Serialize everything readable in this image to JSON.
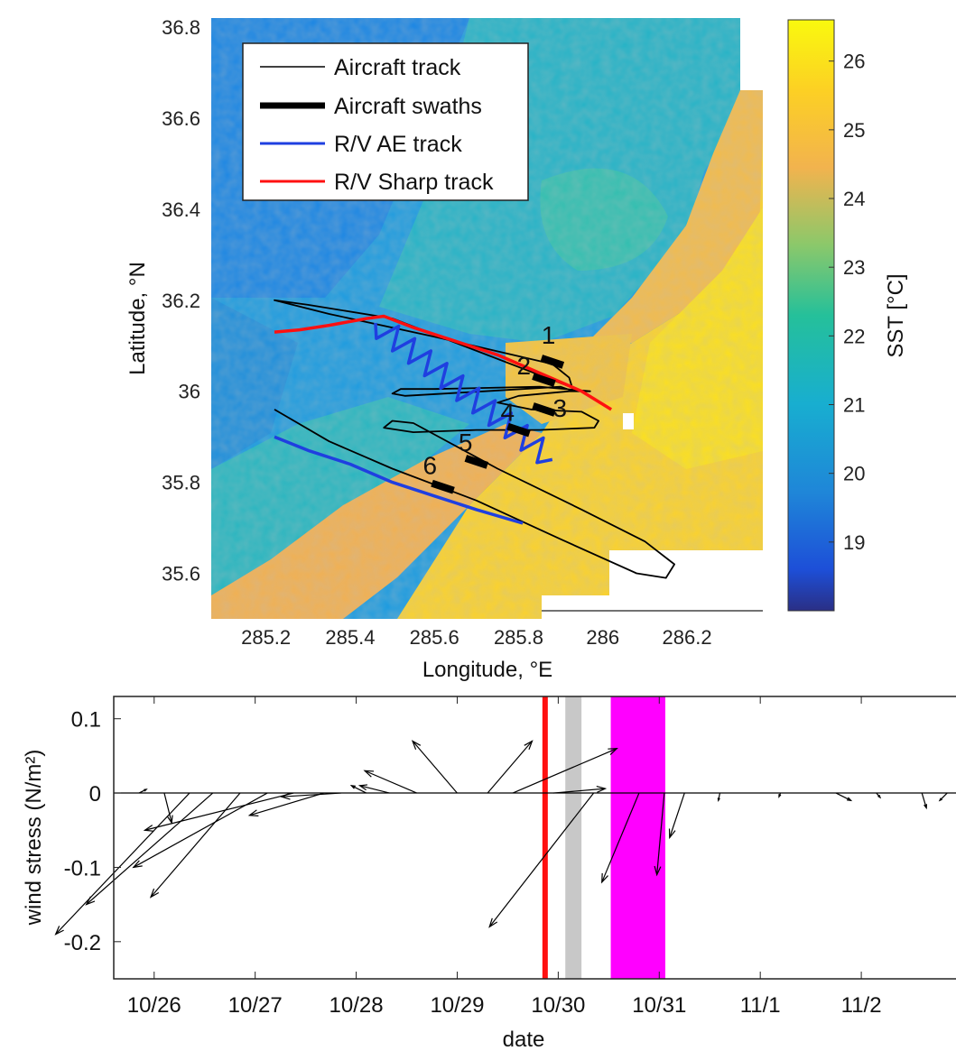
{
  "colors": {
    "aircraft": "#000000",
    "ae": "#1f3fe0",
    "sharp": "#ff1010",
    "gray_band": "#c8c8c8",
    "magenta_band": "#ff00ff"
  },
  "chart_data": [
    {
      "type": "map",
      "xlabel": "Longitude, °E",
      "ylabel": "Latitude, °N",
      "xlim": [
        285.07,
        286.38
      ],
      "ylim": [
        35.5,
        36.82
      ],
      "xticks": [
        285.2,
        285.4,
        285.6,
        285.8,
        286,
        286.2
      ],
      "xtick_labels": [
        "285.2",
        "285.4",
        "285.6",
        "285.8",
        "286",
        "286.2"
      ],
      "yticks": [
        35.6,
        35.8,
        36,
        36.2,
        36.4,
        36.6,
        36.8
      ],
      "ytick_labels": [
        "35.6",
        "35.8",
        "36",
        "36.2",
        "36.4",
        "36.6",
        "36.8"
      ],
      "colorbar": {
        "label": "SST [°C]",
        "range": [
          18,
          26.6
        ],
        "ticks": [
          19,
          20,
          21,
          22,
          23,
          24,
          25,
          26
        ],
        "tick_labels": [
          "19",
          "20",
          "21",
          "22",
          "23",
          "24",
          "25",
          "26"
        ]
      },
      "legend": {
        "placement": "upper-left",
        "entries": [
          "Aircraft track",
          "Aircraft swaths",
          "R/V AE track",
          "R/V Sharp track"
        ]
      },
      "swath_labels": [
        "1",
        "2",
        "3",
        "4",
        "5",
        "6"
      ],
      "tracks": {
        "aircraft": [
          [
            285.95,
            36.0
          ],
          [
            285.5,
            36.16
          ],
          [
            285.3,
            36.19
          ],
          [
            285.22,
            36.2
          ],
          [
            285.35,
            36.17
          ],
          [
            285.6,
            36.12
          ],
          [
            285.88,
            36.06
          ],
          [
            285.92,
            36.03
          ],
          [
            285.93,
            36.0
          ],
          [
            285.9,
            36.01
          ],
          [
            285.72,
            36.0
          ],
          [
            285.53,
            35.99
          ],
          [
            285.5,
            35.995
          ],
          [
            285.52,
            36.005
          ],
          [
            285.6,
            36.005
          ],
          [
            285.85,
            36.01
          ],
          [
            285.97,
            36.0
          ],
          [
            285.92,
            36.0
          ],
          [
            285.8,
            35.99
          ],
          [
            285.75,
            35.975
          ],
          [
            285.83,
            35.96
          ],
          [
            285.95,
            35.955
          ],
          [
            285.99,
            35.935
          ],
          [
            285.98,
            35.92
          ],
          [
            285.85,
            35.915
          ],
          [
            285.7,
            35.915
          ],
          [
            285.55,
            35.91
          ],
          [
            285.48,
            35.92
          ],
          [
            285.5,
            35.935
          ],
          [
            285.55,
            35.93
          ],
          [
            285.75,
            35.83
          ],
          [
            285.95,
            35.74
          ],
          [
            286.1,
            35.67
          ],
          [
            286.17,
            35.62
          ],
          [
            286.15,
            35.59
          ],
          [
            286.08,
            35.6
          ],
          [
            285.9,
            35.675
          ],
          [
            285.7,
            35.76
          ],
          [
            285.5,
            35.83
          ],
          [
            285.35,
            35.89
          ],
          [
            285.22,
            35.96
          ]
        ],
        "ae": [
          [
            285.22,
            35.9
          ],
          [
            285.3,
            35.87
          ],
          [
            285.4,
            35.84
          ],
          [
            285.5,
            35.8
          ],
          [
            285.6,
            35.77
          ],
          [
            285.7,
            35.74
          ],
          [
            285.81,
            35.71
          ]
        ],
        "ae_zigzag_start": [
          285.46,
          36.15
        ],
        "ae_zigzag_end": [
          285.88,
          35.85
        ],
        "sharp": [
          [
            285.22,
            36.13
          ],
          [
            285.28,
            36.135
          ],
          [
            285.35,
            36.145
          ],
          [
            285.44,
            36.16
          ],
          [
            285.48,
            36.165
          ],
          [
            285.55,
            36.14
          ],
          [
            285.65,
            36.11
          ],
          [
            285.75,
            36.08
          ],
          [
            285.85,
            36.04
          ],
          [
            285.95,
            36.0
          ],
          [
            286.02,
            35.96
          ]
        ],
        "swaths": [
          [
            285.88,
            36.065
          ],
          [
            285.86,
            36.025
          ],
          [
            285.86,
            35.96
          ],
          [
            285.8,
            35.915
          ],
          [
            285.7,
            35.845
          ],
          [
            285.62,
            35.79
          ]
        ]
      }
    },
    {
      "type": "quiver",
      "xlabel": "date",
      "ylabel": "wind stress (N/m²)",
      "xlim": [
        25.6,
        34.0
      ],
      "ylim": [
        -0.25,
        0.13
      ],
      "xticks": [
        26,
        27,
        28,
        29,
        30,
        31,
        32,
        33
      ],
      "xtick_labels": [
        "10/26",
        "10/27",
        "10/28",
        "10/29",
        "10/30",
        "10/31",
        "11/1",
        "11/2"
      ],
      "yticks": [
        -0.2,
        -0.1,
        0,
        0.1
      ],
      "ytick_labels": [
        "-0.2",
        "-0.1",
        "0",
        "0.1"
      ],
      "vertical_line": {
        "x": 29.87,
        "color": "#ff1010"
      },
      "bands": [
        {
          "from": 30.07,
          "to": 30.23,
          "color": "#c8c8c8"
        },
        {
          "from": 30.52,
          "to": 31.06,
          "color": "#ff00ff"
        }
      ],
      "vectors": [
        {
          "x": 25.85,
          "u": 0.01,
          "v": 0.005
        },
        {
          "x": 26.1,
          "u": 0.01,
          "v": -0.04
        },
        {
          "x": 26.35,
          "u": -0.18,
          "v": -0.19
        },
        {
          "x": 26.58,
          "u": -0.17,
          "v": -0.15
        },
        {
          "x": 26.85,
          "u": -0.12,
          "v": -0.14
        },
        {
          "x": 27.12,
          "u": -0.18,
          "v": -0.1
        },
        {
          "x": 27.38,
          "u": -0.2,
          "v": -0.05
        },
        {
          "x": 27.68,
          "u": -0.1,
          "v": -0.03
        },
        {
          "x": 27.85,
          "u": -0.08,
          "v": -0.005
        },
        {
          "x": 28.1,
          "u": -0.02,
          "v": 0.01
        },
        {
          "x": 28.33,
          "u": -0.04,
          "v": 0.01
        },
        {
          "x": 28.6,
          "u": -0.07,
          "v": 0.03
        },
        {
          "x": 29.0,
          "u": -0.06,
          "v": 0.07
        },
        {
          "x": 29.3,
          "u": 0.06,
          "v": 0.07
        },
        {
          "x": 29.55,
          "u": 0.14,
          "v": 0.06
        },
        {
          "x": 29.95,
          "u": 0.07,
          "v": 0.006
        },
        {
          "x": 30.35,
          "u": -0.14,
          "v": -0.18
        },
        {
          "x": 30.8,
          "u": -0.05,
          "v": -0.12
        },
        {
          "x": 31.05,
          "u": -0.01,
          "v": -0.11
        },
        {
          "x": 31.25,
          "u": -0.02,
          "v": -0.06
        },
        {
          "x": 31.6,
          "u": -0.002,
          "v": -0.01
        },
        {
          "x": 32.2,
          "u": -0.002,
          "v": -0.005
        },
        {
          "x": 32.75,
          "u": 0.02,
          "v": -0.01
        },
        {
          "x": 33.15,
          "u": 0.005,
          "v": -0.006
        },
        {
          "x": 33.6,
          "u": 0.006,
          "v": -0.02
        },
        {
          "x": 33.85,
          "u": -0.01,
          "v": -0.01
        }
      ]
    }
  ]
}
